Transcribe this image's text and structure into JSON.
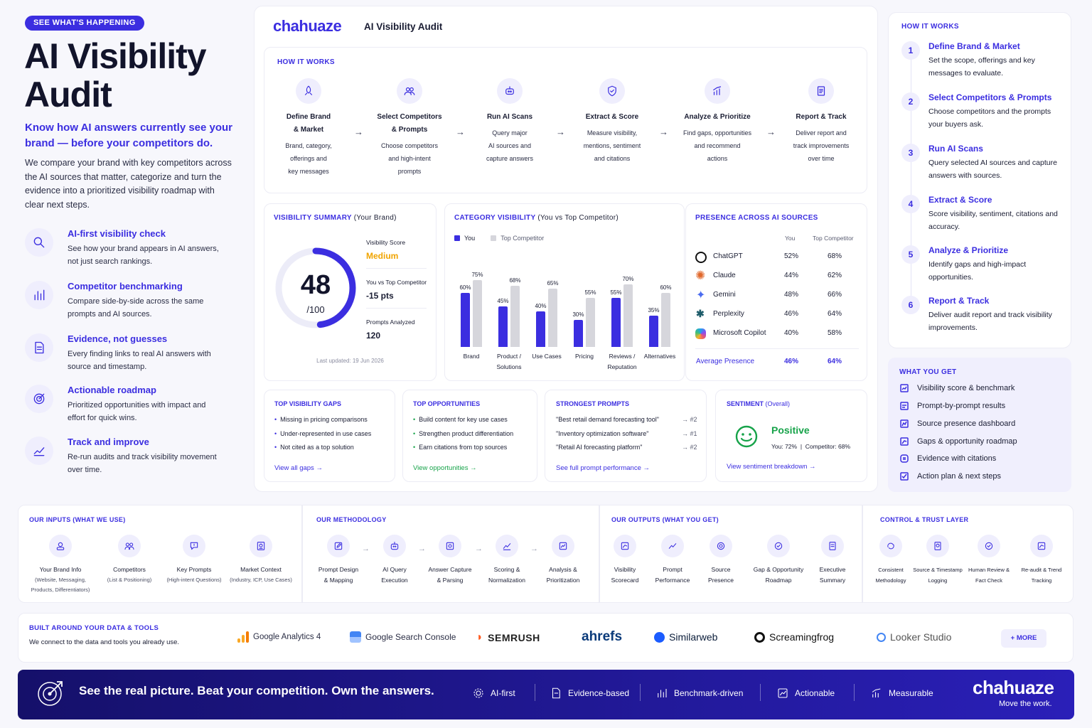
{
  "hero": {
    "badge": "SEE WHAT'S HAPPENING",
    "title_line1": "AI Visibility",
    "title_line2": "Audit",
    "subtitle": "Know how AI answers currently see your brand — before your competitors do.",
    "description": "We compare your brand with key competitors across the AI sources that matter, categorize and turn the evidence into a prioritized visibility roadmap with clear next steps."
  },
  "features": [
    {
      "title": "AI-first visibility check",
      "desc": "See how your brand appears in AI answers, not just search rankings.",
      "icon": "search-icon"
    },
    {
      "title": "Competitor benchmarking",
      "desc": "Compare side-by-side across the same prompts and AI sources.",
      "icon": "bar-chart-icon"
    },
    {
      "title": "Evidence, not guesses",
      "desc": "Every finding links to real AI answers with source and timestamp.",
      "icon": "document-icon"
    },
    {
      "title": "Actionable roadmap",
      "desc": "Prioritized opportunities with impact and effort for quick wins.",
      "icon": "target-icon"
    },
    {
      "title": "Track and improve",
      "desc": "Re-run audits and track visibility movement over time.",
      "icon": "trend-icon"
    }
  ],
  "header": {
    "logo": "chahuaze",
    "title": "AI Visibility Audit"
  },
  "how_it_works": {
    "kicker": "HOW IT WORKS",
    "steps": [
      {
        "title1": "Define Brand",
        "title2": "& Market",
        "desc": [
          "Brand, category,",
          "offerings and",
          "key messages"
        ],
        "icon": "rocket-icon"
      },
      {
        "title1": "Select Competitors",
        "title2": "& Prompts",
        "desc": [
          "Choose competitors",
          "and high-intent",
          "prompts"
        ],
        "icon": "users-icon"
      },
      {
        "title1": "Run AI Scans",
        "title2": "",
        "desc": [
          "Query major",
          "AI sources and",
          "capture answers"
        ],
        "icon": "robot-icon"
      },
      {
        "title1": "Extract & Score",
        "title2": "",
        "desc": [
          "Measure visibility,",
          "mentions, sentiment",
          "and citations"
        ],
        "icon": "shield-check-icon"
      },
      {
        "title1": "Analyze & Prioritize",
        "title2": "",
        "desc": [
          "Find gaps, opportunities",
          "and recommend",
          "actions"
        ],
        "icon": "chart-up-icon"
      },
      {
        "title1": "Report & Track",
        "title2": "",
        "desc": [
          "Deliver report and",
          "track improvements",
          "over time"
        ],
        "icon": "report-icon"
      }
    ]
  },
  "summary": {
    "kicker": "VISIBILITY SUMMARY",
    "kicker_suffix": "(Your Brand)",
    "score": "48",
    "score_max": "/100",
    "score_fraction": 0.48,
    "score_label": "Visibility Score",
    "score_value": "Medium",
    "vs_label": "You vs Top Competitor",
    "vs_value": "-15 pts",
    "prompts_label": "Prompts Analyzed",
    "prompts_value": "120",
    "updated": "Last updated: 19 Jun 2026"
  },
  "chart_data": {
    "type": "bar",
    "title": "CATEGORY VISIBILITY",
    "title_suffix": "(You vs Top Competitor)",
    "categories": [
      "Brand",
      "Product / Solutions",
      "Use Cases",
      "Pricing",
      "Reviews / Reputation",
      "Alternatives"
    ],
    "series": [
      {
        "name": "You",
        "values": [
          60,
          45,
          40,
          30,
          55,
          35
        ],
        "color": "#3b2ee0"
      },
      {
        "name": "Top Competitor",
        "values": [
          75,
          68,
          65,
          55,
          70,
          60
        ],
        "color": "#d6d6dc"
      }
    ],
    "ylim": [
      0,
      100
    ],
    "value_suffix": "%",
    "legend": "top-left"
  },
  "presence": {
    "kicker": "PRESENCE ACROSS AI SOURCES",
    "col_you": "You",
    "col_comp": "Top Competitor",
    "rows": [
      {
        "name": "ChatGPT",
        "you": "52%",
        "comp": "68%",
        "icon": "chatgpt-icon"
      },
      {
        "name": "Claude",
        "you": "44%",
        "comp": "62%",
        "icon": "claude-icon"
      },
      {
        "name": "Gemini",
        "you": "48%",
        "comp": "66%",
        "icon": "gemini-icon"
      },
      {
        "name": "Perplexity",
        "you": "46%",
        "comp": "64%",
        "icon": "perplexity-icon"
      },
      {
        "name": "Microsoft Copilot",
        "you": "40%",
        "comp": "58%",
        "icon": "copilot-icon"
      }
    ],
    "avg_label": "Average Presence",
    "avg_you": "46%",
    "avg_comp": "64%"
  },
  "gaps": {
    "kicker": "TOP VISIBILITY GAPS",
    "items": [
      "Missing in pricing comparisons",
      "Under-represented in use cases",
      "Not cited as a top solution"
    ],
    "link": "View all gaps →"
  },
  "opportunities": {
    "kicker": "TOP OPPORTUNITIES",
    "items": [
      "Build content for key use cases",
      "Strengthen product differentiation",
      "Earn citations from top sources"
    ],
    "link": "View opportunities →"
  },
  "prompts": {
    "kicker": "STRONGEST PROMPTS",
    "items": [
      {
        "text": "\"Best retail demand forecasting tool\"",
        "rank": "→ #2"
      },
      {
        "text": "\"Inventory optimization software\"",
        "rank": "→ #1"
      },
      {
        "text": "\"Retail AI forecasting platform\"",
        "rank": "→ #2"
      }
    ],
    "link": "See full prompt performance →"
  },
  "sentiment": {
    "kicker": "SENTIMENT",
    "kicker_suffix": "(Overall)",
    "value": "Positive",
    "you": "You: 72%",
    "comp": "Competitor: 68%",
    "link": "View sentiment breakdown →"
  },
  "right_how": {
    "kicker": "HOW IT WORKS",
    "steps": [
      {
        "num": "1",
        "title": "Define Brand & Market",
        "desc": "Set the scope, offerings and key messages to evaluate."
      },
      {
        "num": "2",
        "title": "Select Competitors & Prompts",
        "desc": "Choose competitors and the prompts your buyers ask."
      },
      {
        "num": "3",
        "title": "Run AI Scans",
        "desc": "Query selected AI sources and capture answers with sources."
      },
      {
        "num": "4",
        "title": "Extract & Score",
        "desc": "Score visibility, sentiment, citations and accuracy."
      },
      {
        "num": "5",
        "title": "Analyze & Prioritize",
        "desc": "Identify gaps and high-impact opportunities."
      },
      {
        "num": "6",
        "title": "Report & Track",
        "desc": "Deliver audit report and track visibility improvements."
      }
    ]
  },
  "what_you_get": {
    "kicker": "WHAT YOU GET",
    "items": [
      "Visibility score & benchmark",
      "Prompt-by-prompt results",
      "Source presence dashboard",
      "Gaps & opportunity roadmap",
      "Evidence with citations",
      "Action plan & next steps"
    ]
  },
  "inputs": {
    "kicker": "OUR INPUTS (WHAT WE USE)",
    "items": [
      {
        "title": "Your Brand Info",
        "sub": [
          "(Website, Messaging,",
          "Products, Differentiators)"
        ],
        "icon": "brand-icon"
      },
      {
        "title": "Competitors",
        "sub": [
          "(List & Positioning)"
        ],
        "icon": "users-icon"
      },
      {
        "title": "Key Prompts",
        "sub": [
          "(High-intent Questions)"
        ],
        "icon": "chat-icon"
      },
      {
        "title": "Market Context",
        "sub": [
          "(Industry, ICP, Use Cases)"
        ],
        "icon": "market-icon"
      }
    ]
  },
  "methodology": {
    "kicker": "OUR METHODOLOGY",
    "items": [
      {
        "t1": "Prompt Design",
        "t2": "& Mapping",
        "icon": "edit-icon"
      },
      {
        "t1": "AI Query",
        "t2": "Execution",
        "icon": "robot-icon"
      },
      {
        "t1": "Answer Capture",
        "t2": "& Parsing",
        "icon": "capture-icon"
      },
      {
        "t1": "Scoring &",
        "t2": "Normalization",
        "icon": "score-icon"
      },
      {
        "t1": "Analysis &",
        "t2": "Prioritization",
        "icon": "analysis-icon"
      }
    ]
  },
  "outputs": {
    "kicker": "OUR OUTPUTS (WHAT YOU GET)",
    "items": [
      {
        "t1": "Visibility",
        "t2": "Scorecard",
        "icon": "scorecard-icon"
      },
      {
        "t1": "Prompt",
        "t2": "Performance",
        "icon": "trend-icon"
      },
      {
        "t1": "Source",
        "t2": "Presence",
        "icon": "source-icon"
      },
      {
        "t1": "Gap & Opportunity",
        "t2": "Roadmap",
        "icon": "roadmap-icon"
      },
      {
        "t1": "Executive",
        "t2": "Summary",
        "icon": "summary-icon"
      }
    ]
  },
  "trust": {
    "kicker": "CONTROL & TRUST LAYER",
    "items": [
      {
        "t1": "Consistent",
        "t2": "Methodology",
        "icon": "consistent-icon"
      },
      {
        "t1": "Source & Timestamp",
        "t2": "Logging",
        "icon": "log-icon"
      },
      {
        "t1": "Human Review &",
        "t2": "Fact Check",
        "icon": "review-icon"
      },
      {
        "t1": "Re-audit & Trend",
        "t2": "Tracking",
        "icon": "reaudit-icon"
      }
    ]
  },
  "tools": {
    "kicker": "BUILT AROUND YOUR DATA & TOOLS",
    "desc": "We connect to the data and tools you already use.",
    "items": [
      "Google Analytics 4",
      "Google Search Console",
      "SEMRUSH",
      "ahrefs",
      "Similarweb",
      "Screamingfrog",
      "Looker Studio"
    ],
    "more": "+ MORE"
  },
  "footer": {
    "tagline": "See the real picture. Beat your competition. Own the answers.",
    "items": [
      "AI-first",
      "Evidence-based",
      "Benchmark-driven",
      "Actionable",
      "Measurable"
    ],
    "logo": "chahuaze",
    "slogan": "Move the work."
  }
}
